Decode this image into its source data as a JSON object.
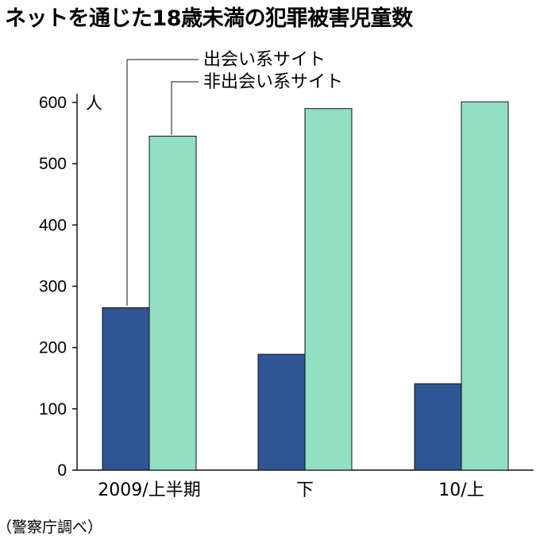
{
  "chart_data": {
    "type": "bar",
    "title": "ネットを通じた18歳未満の犯罪被害児童数",
    "unit": "人",
    "source": "（警察庁調べ）",
    "categories": [
      "2009/上半期",
      "下",
      "10/上"
    ],
    "series": [
      {
        "name": "出会い系サイト",
        "values": [
          265,
          189,
          141
        ],
        "color": "#2f5592"
      },
      {
        "name": "非出会い系サイト",
        "values": [
          545,
          590,
          601
        ],
        "color": "#92dfc3"
      }
    ],
    "ylim": [
      0,
      600
    ],
    "yticks": [
      0,
      100,
      200,
      300,
      400,
      500,
      600
    ],
    "grid": false,
    "legend": "top-left, callout lines to first group"
  }
}
